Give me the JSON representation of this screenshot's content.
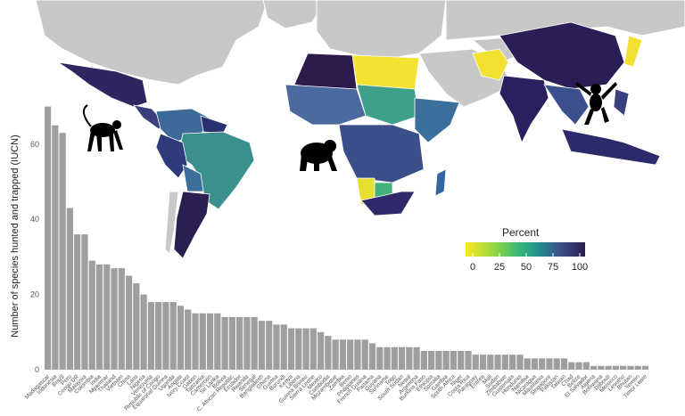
{
  "chart_data": {
    "type": "bar",
    "title": "",
    "xlabel": "",
    "ylabel": "Number of species hunted and trapped (IUCN)",
    "ylim": [
      0,
      72
    ],
    "yticks": [
      0,
      20,
      40,
      60
    ],
    "grid": false,
    "bar_color": "#9e9e9e",
    "categories": [
      "Madagascar",
      "Indonesia",
      "Brazil",
      "Peru",
      "Congo DR",
      "Malaysia",
      "Colombia",
      "India",
      "Myanmar",
      "Thailand",
      "Vietnam",
      "China",
      "Laos",
      "Nigeria",
      "Venezuela",
      "Republic of Congo",
      "Equatorial Guinea",
      "Uganda",
      "Angola",
      "Ivory Coast",
      "Gabon",
      "Tanzania",
      "Cameroon",
      "Sri Lanka",
      "Bolivia",
      "C. African Republic",
      "Ecuador",
      "Rwanda",
      "Senegal",
      "Bangladesh",
      "Ghana",
      "Guinea",
      "Burundi",
      "Kenya",
      "Liberia",
      "Guinea Bissau",
      "Sierra Leone",
      "Mexico",
      "Cambodia",
      "Mozambique",
      "Zambia",
      "Benin",
      "Philippines",
      "French Guiana",
      "Panama",
      "Guyana",
      "Suriname",
      "Togo",
      "South Sudan",
      "Nepal",
      "Argentina",
      "Burkina Faso",
      "Ethiopia",
      "Somalia",
      "Gambia",
      "South Africa",
      "Niger",
      "Costa Rica",
      "Paraguay",
      "Eritrea",
      "Mali",
      "Sudan",
      "Zimbabwe",
      "Guatemala",
      "Honduras",
      "Namibia",
      "Nicaragua",
      "Mauritania",
      "Singapore",
      "Pakistan",
      "Taiwan",
      "Chad",
      "Belize",
      "El Salvador",
      "Algeria",
      "Botswana",
      "Djibouti",
      "Morocco",
      "Lesotho",
      "Bhutan",
      "Yemen",
      "Timor Leste"
    ],
    "values": [
      70,
      65,
      63,
      43,
      36,
      36,
      29,
      28,
      28,
      27,
      27,
      25,
      23,
      20,
      18,
      18,
      18,
      18,
      17,
      16,
      15,
      15,
      15,
      15,
      14,
      14,
      14,
      14,
      14,
      13,
      13,
      12,
      12,
      11,
      11,
      11,
      11,
      10,
      9,
      8,
      8,
      8,
      8,
      8,
      7,
      6,
      6,
      6,
      6,
      6,
      6,
      5,
      5,
      5,
      5,
      5,
      5,
      5,
      4,
      4,
      4,
      4,
      4,
      4,
      4,
      3,
      3,
      3,
      3,
      3,
      3,
      2,
      2,
      2,
      1,
      1,
      1,
      1,
      1,
      1,
      1,
      1
    ],
    "legend": {
      "title": "Percent",
      "ticks": [
        "0",
        "25",
        "50",
        "75",
        "100"
      ],
      "colorscale": [
        "#fde725",
        "#5ec962",
        "#21918c",
        "#3b528b",
        "#2d1b4e"
      ],
      "placement": "right-middle"
    }
  }
}
